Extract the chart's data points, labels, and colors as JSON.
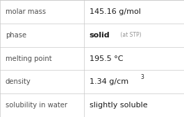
{
  "rows": [
    {
      "label": "molar mass",
      "value": "145.16 g/mol",
      "type": "normal"
    },
    {
      "label": "phase",
      "value": "solid",
      "value_suffix": " (at STP)",
      "type": "phase"
    },
    {
      "label": "melting point",
      "value": "195.5 °C",
      "type": "normal"
    },
    {
      "label": "density",
      "value": "1.34 g/cm",
      "superscript": "3",
      "type": "density"
    },
    {
      "label": "solubility in water",
      "value": "slightly soluble",
      "type": "normal"
    }
  ],
  "background_color": "#ffffff",
  "border_color": "#c8c8c8",
  "label_color": "#505050",
  "value_color": "#1a1a1a",
  "suffix_color": "#909090",
  "label_fontsize": 7.2,
  "value_fontsize": 8.0,
  "suffix_fontsize": 5.5,
  "col_split": 0.455,
  "figwidth": 2.65,
  "figheight": 1.69,
  "dpi": 100
}
